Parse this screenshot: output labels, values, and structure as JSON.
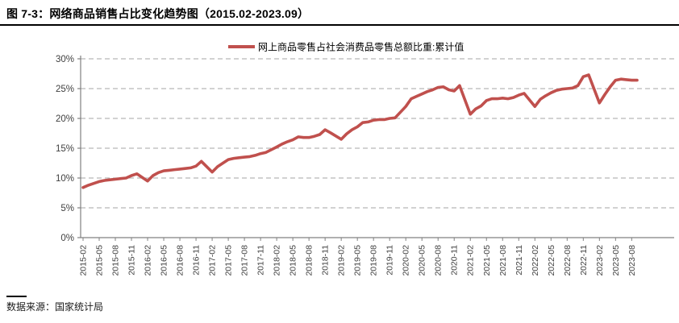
{
  "page": {
    "title": "图 7-3：网络商品销售占比变化趋势图（2015.02-2023.09）",
    "source_label": "数据来源：国家统计局"
  },
  "chart_data": {
    "type": "line",
    "title": "",
    "legend_position": "top",
    "grid": true,
    "line_color": "#C0504D",
    "axis_color": "#808080",
    "grid_color": "#b8b8b8",
    "tick_label_color": "#404040",
    "ylim": [
      0,
      30
    ],
    "ylabel": "",
    "xlabel": "",
    "y_ticks": [
      "0%",
      "5%",
      "10%",
      "15%",
      "20%",
      "25%",
      "30%"
    ],
    "x_tick_labels": [
      "2015-02",
      "2015-05",
      "2015-08",
      "2015-11",
      "2016-02",
      "2016-05",
      "2016-08",
      "2016-11",
      "2017-02",
      "2017-05",
      "2017-08",
      "2017-11",
      "2018-02",
      "2018-05",
      "2018-08",
      "2018-11",
      "2019-02",
      "2019-05",
      "2019-08",
      "2019-11",
      "2020-02",
      "2020-05",
      "2020-08",
      "2020-11",
      "2021-02",
      "2021-05",
      "2021-08",
      "2021-11",
      "2022-02",
      "2022-05",
      "2022-08",
      "2022-11",
      "2023-02",
      "2023-05",
      "2023-08"
    ],
    "series": [
      {
        "name": "网上商品零售占社会消费品零售总额比重:累计值",
        "unit": "%",
        "points": [
          {
            "x": "2015-02",
            "y": 8.4
          },
          {
            "x": "2015-03",
            "y": 8.8
          },
          {
            "x": "2015-04",
            "y": 9.1
          },
          {
            "x": "2015-05",
            "y": 9.4
          },
          {
            "x": "2015-06",
            "y": 9.6
          },
          {
            "x": "2015-07",
            "y": 9.7
          },
          {
            "x": "2015-08",
            "y": 9.8
          },
          {
            "x": "2015-09",
            "y": 9.9
          },
          {
            "x": "2015-10",
            "y": 10.0
          },
          {
            "x": "2015-11",
            "y": 10.4
          },
          {
            "x": "2015-12",
            "y": 10.7
          },
          {
            "x": "2016-02",
            "y": 9.5
          },
          {
            "x": "2016-03",
            "y": 10.4
          },
          {
            "x": "2016-04",
            "y": 10.9
          },
          {
            "x": "2016-05",
            "y": 11.2
          },
          {
            "x": "2016-06",
            "y": 11.3
          },
          {
            "x": "2016-07",
            "y": 11.4
          },
          {
            "x": "2016-08",
            "y": 11.5
          },
          {
            "x": "2016-09",
            "y": 11.6
          },
          {
            "x": "2016-10",
            "y": 11.7
          },
          {
            "x": "2016-11",
            "y": 12.0
          },
          {
            "x": "2016-12",
            "y": 12.8
          },
          {
            "x": "2017-02",
            "y": 11.0
          },
          {
            "x": "2017-03",
            "y": 11.9
          },
          {
            "x": "2017-04",
            "y": 12.5
          },
          {
            "x": "2017-05",
            "y": 13.1
          },
          {
            "x": "2017-06",
            "y": 13.3
          },
          {
            "x": "2017-07",
            "y": 13.4
          },
          {
            "x": "2017-08",
            "y": 13.5
          },
          {
            "x": "2017-09",
            "y": 13.6
          },
          {
            "x": "2017-10",
            "y": 13.8
          },
          {
            "x": "2017-11",
            "y": 14.1
          },
          {
            "x": "2017-12",
            "y": 14.3
          },
          {
            "x": "2018-02",
            "y": 15.2
          },
          {
            "x": "2018-03",
            "y": 15.7
          },
          {
            "x": "2018-04",
            "y": 16.1
          },
          {
            "x": "2018-05",
            "y": 16.4
          },
          {
            "x": "2018-06",
            "y": 16.9
          },
          {
            "x": "2018-07",
            "y": 16.8
          },
          {
            "x": "2018-08",
            "y": 16.8
          },
          {
            "x": "2018-09",
            "y": 17.0
          },
          {
            "x": "2018-10",
            "y": 17.3
          },
          {
            "x": "2018-11",
            "y": 18.1
          },
          {
            "x": "2018-12",
            "y": 17.6
          },
          {
            "x": "2019-02",
            "y": 16.5
          },
          {
            "x": "2019-03",
            "y": 17.4
          },
          {
            "x": "2019-04",
            "y": 18.1
          },
          {
            "x": "2019-05",
            "y": 18.6
          },
          {
            "x": "2019-06",
            "y": 19.3
          },
          {
            "x": "2019-07",
            "y": 19.4
          },
          {
            "x": "2019-08",
            "y": 19.7
          },
          {
            "x": "2019-09",
            "y": 19.8
          },
          {
            "x": "2019-10",
            "y": 19.8
          },
          {
            "x": "2019-11",
            "y": 20.0
          },
          {
            "x": "2019-12",
            "y": 20.1
          },
          {
            "x": "2020-02",
            "y": 22.0
          },
          {
            "x": "2020-03",
            "y": 23.3
          },
          {
            "x": "2020-04",
            "y": 23.7
          },
          {
            "x": "2020-05",
            "y": 24.1
          },
          {
            "x": "2020-06",
            "y": 24.5
          },
          {
            "x": "2020-07",
            "y": 24.8
          },
          {
            "x": "2020-08",
            "y": 25.2
          },
          {
            "x": "2020-09",
            "y": 25.3
          },
          {
            "x": "2020-10",
            "y": 24.8
          },
          {
            "x": "2020-11",
            "y": 24.6
          },
          {
            "x": "2020-12",
            "y": 25.5
          },
          {
            "x": "2021-02",
            "y": 20.7
          },
          {
            "x": "2021-03",
            "y": 21.6
          },
          {
            "x": "2021-04",
            "y": 22.1
          },
          {
            "x": "2021-05",
            "y": 23.0
          },
          {
            "x": "2021-06",
            "y": 23.3
          },
          {
            "x": "2021-07",
            "y": 23.3
          },
          {
            "x": "2021-08",
            "y": 23.4
          },
          {
            "x": "2021-09",
            "y": 23.3
          },
          {
            "x": "2021-10",
            "y": 23.5
          },
          {
            "x": "2021-11",
            "y": 23.9
          },
          {
            "x": "2021-12",
            "y": 24.2
          },
          {
            "x": "2022-02",
            "y": 22.0
          },
          {
            "x": "2022-03",
            "y": 23.2
          },
          {
            "x": "2022-04",
            "y": 23.8
          },
          {
            "x": "2022-05",
            "y": 24.3
          },
          {
            "x": "2022-06",
            "y": 24.7
          },
          {
            "x": "2022-07",
            "y": 24.9
          },
          {
            "x": "2022-08",
            "y": 25.0
          },
          {
            "x": "2022-09",
            "y": 25.1
          },
          {
            "x": "2022-10",
            "y": 25.5
          },
          {
            "x": "2022-11",
            "y": 27.0
          },
          {
            "x": "2022-12",
            "y": 27.3
          },
          {
            "x": "2023-02",
            "y": 22.6
          },
          {
            "x": "2023-03",
            "y": 24.0
          },
          {
            "x": "2023-04",
            "y": 25.3
          },
          {
            "x": "2023-05",
            "y": 26.4
          },
          {
            "x": "2023-06",
            "y": 26.6
          },
          {
            "x": "2023-07",
            "y": 26.5
          },
          {
            "x": "2023-08",
            "y": 26.4
          },
          {
            "x": "2023-09",
            "y": 26.4
          }
        ]
      }
    ]
  }
}
